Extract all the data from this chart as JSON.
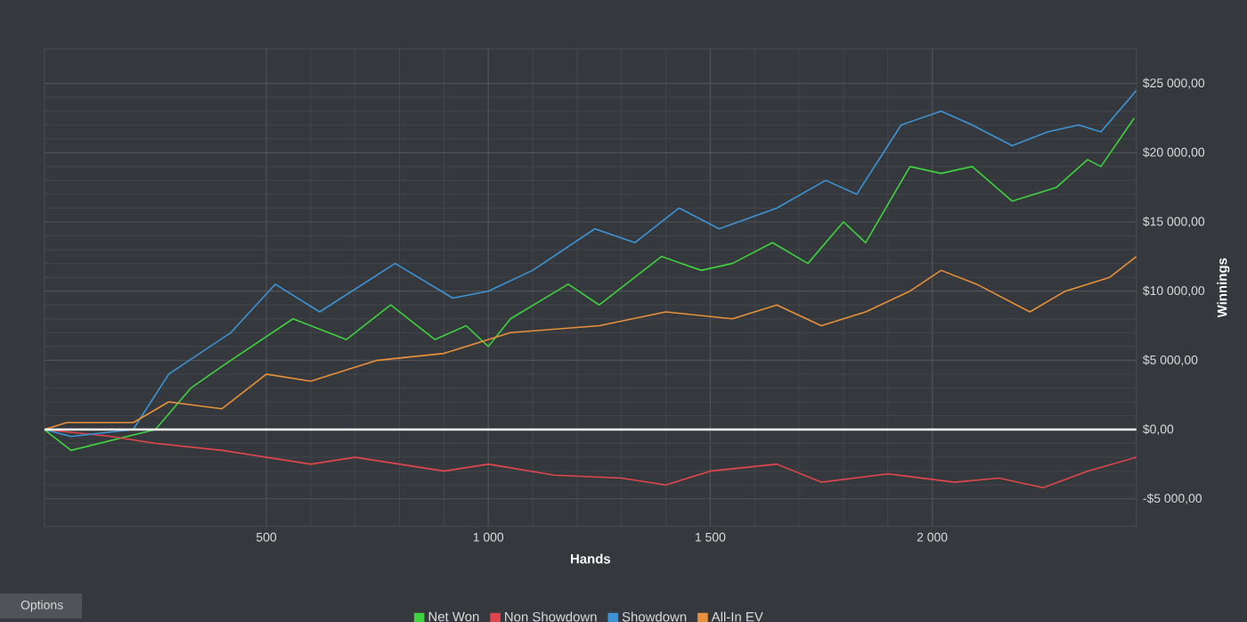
{
  "chart_data": {
    "type": "line",
    "xlabel": "Hands",
    "ylabel": "Winnings",
    "xlim": [
      0,
      2460
    ],
    "ylim": [
      -7000,
      27500
    ],
    "xticks": [
      {
        "value": 500,
        "label": "500"
      },
      {
        "value": 1000,
        "label": "1 000"
      },
      {
        "value": 1500,
        "label": "1 500"
      },
      {
        "value": 2000,
        "label": "2 000"
      }
    ],
    "yticks": [
      {
        "value": -5000,
        "label": "-$5 000,00"
      },
      {
        "value": 0,
        "label": "$0,00"
      },
      {
        "value": 5000,
        "label": "$5 000,00"
      },
      {
        "value": 10000,
        "label": "$10 000,00"
      },
      {
        "value": 15000,
        "label": "$15 000,00"
      },
      {
        "value": 20000,
        "label": "$20 000,00"
      },
      {
        "value": 25000,
        "label": "$25 000,00"
      }
    ],
    "grid": true,
    "legend": "bottom",
    "marker": "none",
    "line_style": "solid",
    "ref_lines": [
      {
        "axis": "y",
        "value": 0,
        "color": "#ffffff"
      }
    ],
    "annotations": [
      "Options"
    ],
    "series": [
      {
        "name": "Net Won",
        "color": "#3fd13f",
        "x": [
          0,
          60,
          250,
          330,
          420,
          560,
          680,
          780,
          880,
          950,
          1000,
          1050,
          1180,
          1250,
          1390,
          1480,
          1550,
          1640,
          1720,
          1800,
          1850,
          1950,
          2020,
          2090,
          2180,
          2280,
          2350,
          2380,
          2455
        ],
        "values": [
          0,
          -1500,
          0,
          3000,
          5000,
          8000,
          6500,
          9000,
          6500,
          7500,
          6000,
          8000,
          10500,
          9000,
          12500,
          11500,
          12000,
          13500,
          12000,
          15000,
          13500,
          19000,
          18500,
          19000,
          16500,
          17500,
          19500,
          19000,
          22500
        ]
      },
      {
        "name": "Non Showdown",
        "color": "#e0474c",
        "x": [
          0,
          150,
          250,
          400,
          500,
          600,
          700,
          900,
          1000,
          1150,
          1300,
          1400,
          1500,
          1650,
          1750,
          1900,
          2050,
          2150,
          2250,
          2350,
          2460
        ],
        "values": [
          0,
          -500,
          -1000,
          -1500,
          -2000,
          -2500,
          -2000,
          -3000,
          -2500,
          -3300,
          -3500,
          -4000,
          -3000,
          -2500,
          -3800,
          -3200,
          -3800,
          -3500,
          -4200,
          -3000,
          -2000
        ]
      },
      {
        "name": "Showdown",
        "color": "#3d94d6",
        "x": [
          0,
          60,
          200,
          280,
          420,
          520,
          620,
          790,
          920,
          1000,
          1100,
          1240,
          1330,
          1430,
          1520,
          1650,
          1760,
          1830,
          1930,
          2020,
          2090,
          2180,
          2260,
          2330,
          2380,
          2460
        ],
        "values": [
          0,
          -500,
          0,
          4000,
          7000,
          10500,
          8500,
          12000,
          9500,
          10000,
          11500,
          14500,
          13500,
          16000,
          14500,
          16000,
          18000,
          17000,
          22000,
          23000,
          22000,
          20500,
          21500,
          22000,
          21500,
          24500
        ]
      },
      {
        "name": "All-In EV",
        "color": "#e8913a",
        "x": [
          0,
          50,
          200,
          280,
          400,
          500,
          600,
          750,
          900,
          1050,
          1250,
          1400,
          1550,
          1650,
          1750,
          1850,
          1950,
          2020,
          2100,
          2220,
          2300,
          2400,
          2460
        ],
        "values": [
          0,
          500,
          500,
          2000,
          1500,
          4000,
          3500,
          5000,
          5500,
          7000,
          7500,
          8500,
          8000,
          9000,
          7500,
          8500,
          10000,
          11500,
          10500,
          8500,
          10000,
          11000,
          12500
        ]
      }
    ]
  }
}
